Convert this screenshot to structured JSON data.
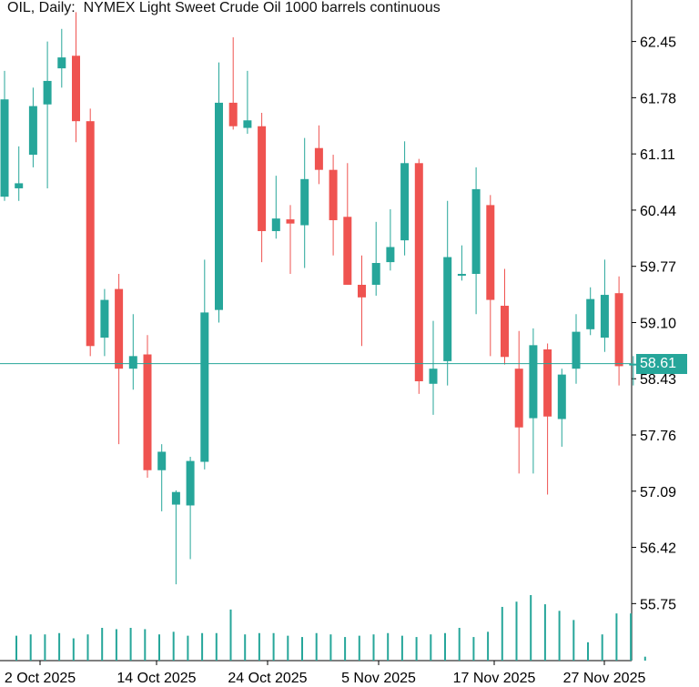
{
  "chart_data": {
    "type": "candlestick",
    "title": "OIL, Daily:  NYMEX Light Sweet Crude Oil 1000 barrels continuous",
    "ylim": [
      54.85,
      63.0
    ],
    "y_ticks": [
      "62.45",
      "61.78",
      "61.11",
      "60.44",
      "59.77",
      "59.10",
      "58.43",
      "57.76",
      "57.09",
      "56.42",
      "55.75"
    ],
    "x_tick_labels": [
      "2 Oct 2025",
      "14 Oct 2025",
      "24 Oct 2025",
      "5 Nov 2025",
      "17 Nov 2025",
      "27 Nov 2025"
    ],
    "last_price": "58.61",
    "colors": {
      "up": "#26a69a",
      "down": "#ef5350",
      "axis": "#000000",
      "volume": "#26a69a",
      "price_line": "#26a69a"
    },
    "candles": [
      {
        "o": 60.6,
        "h": 62.1,
        "l": 60.55,
        "c": 61.76
      },
      {
        "o": 60.7,
        "h": 61.2,
        "l": 60.55,
        "c": 60.76
      },
      {
        "o": 61.1,
        "h": 61.9,
        "l": 60.95,
        "c": 61.68
      },
      {
        "o": 61.7,
        "h": 62.45,
        "l": 60.7,
        "c": 61.98
      },
      {
        "o": 62.13,
        "h": 62.6,
        "l": 61.9,
        "c": 62.26
      },
      {
        "o": 62.28,
        "h": 62.8,
        "l": 61.25,
        "c": 61.5
      },
      {
        "o": 61.5,
        "h": 61.65,
        "l": 58.7,
        "c": 58.82
      },
      {
        "o": 58.92,
        "h": 59.5,
        "l": 58.7,
        "c": 59.37
      },
      {
        "o": 59.5,
        "h": 59.68,
        "l": 57.65,
        "c": 58.55
      },
      {
        "o": 58.55,
        "h": 59.2,
        "l": 58.3,
        "c": 58.7
      },
      {
        "o": 58.72,
        "h": 58.95,
        "l": 57.25,
        "c": 57.34
      },
      {
        "o": 57.34,
        "h": 57.65,
        "l": 56.85,
        "c": 57.56
      },
      {
        "o": 56.93,
        "h": 57.1,
        "l": 55.98,
        "c": 57.08
      },
      {
        "o": 56.92,
        "h": 57.5,
        "l": 56.28,
        "c": 57.45
      },
      {
        "o": 57.44,
        "h": 59.85,
        "l": 57.35,
        "c": 59.22
      },
      {
        "o": 59.25,
        "h": 62.2,
        "l": 59.1,
        "c": 61.72
      },
      {
        "o": 61.72,
        "h": 62.5,
        "l": 61.4,
        "c": 61.44
      },
      {
        "o": 61.42,
        "h": 62.1,
        "l": 61.35,
        "c": 61.51
      },
      {
        "o": 61.44,
        "h": 61.6,
        "l": 59.82,
        "c": 60.19
      },
      {
        "o": 60.19,
        "h": 60.85,
        "l": 60.1,
        "c": 60.34
      },
      {
        "o": 60.33,
        "h": 60.5,
        "l": 59.68,
        "c": 60.28
      },
      {
        "o": 60.26,
        "h": 61.3,
        "l": 59.75,
        "c": 60.81
      },
      {
        "o": 61.18,
        "h": 61.45,
        "l": 60.75,
        "c": 60.92
      },
      {
        "o": 60.92,
        "h": 61.1,
        "l": 59.9,
        "c": 60.32
      },
      {
        "o": 60.36,
        "h": 61.0,
        "l": 59.55,
        "c": 59.55
      },
      {
        "o": 59.55,
        "h": 59.9,
        "l": 58.82,
        "c": 59.4
      },
      {
        "o": 59.55,
        "h": 60.3,
        "l": 59.42,
        "c": 59.81
      },
      {
        "o": 59.82,
        "h": 60.45,
        "l": 59.72,
        "c": 60.0
      },
      {
        "o": 60.08,
        "h": 61.26,
        "l": 59.9,
        "c": 61.0
      },
      {
        "o": 61.0,
        "h": 61.05,
        "l": 58.25,
        "c": 58.4
      },
      {
        "o": 58.37,
        "h": 59.12,
        "l": 58.0,
        "c": 58.55
      },
      {
        "o": 58.64,
        "h": 60.55,
        "l": 58.35,
        "c": 59.88
      },
      {
        "o": 59.66,
        "h": 60.02,
        "l": 59.6,
        "c": 59.68
      },
      {
        "o": 59.68,
        "h": 60.95,
        "l": 59.2,
        "c": 60.69
      },
      {
        "o": 60.5,
        "h": 60.62,
        "l": 58.7,
        "c": 59.37
      },
      {
        "o": 59.3,
        "h": 59.74,
        "l": 58.6,
        "c": 58.69
      },
      {
        "o": 58.55,
        "h": 59.0,
        "l": 57.3,
        "c": 57.85
      },
      {
        "o": 57.96,
        "h": 59.03,
        "l": 57.3,
        "c": 58.83
      },
      {
        "o": 58.78,
        "h": 58.85,
        "l": 57.05,
        "c": 57.98
      },
      {
        "o": 57.95,
        "h": 58.55,
        "l": 57.62,
        "c": 58.48
      },
      {
        "o": 58.55,
        "h": 59.2,
        "l": 58.37,
        "c": 58.99
      },
      {
        "o": 59.02,
        "h": 59.52,
        "l": 58.95,
        "c": 59.38
      },
      {
        "o": 58.92,
        "h": 59.85,
        "l": 58.75,
        "c": 59.43
      },
      {
        "o": 59.45,
        "h": 59.65,
        "l": 58.35,
        "c": 58.58
      },
      {
        "o": 58.61,
        "h": 58.7,
        "l": 58.35,
        "c": 58.61
      }
    ],
    "volumes": [
      0.38,
      0.4,
      0.4,
      0.42,
      0.34,
      0.4,
      0.5,
      0.48,
      0.5,
      0.48,
      0.4,
      0.44,
      0.38,
      0.42,
      0.42,
      0.78,
      0.4,
      0.42,
      0.42,
      0.38,
      0.36,
      0.42,
      0.4,
      0.36,
      0.38,
      0.4,
      0.42,
      0.38,
      0.36,
      0.4,
      0.42,
      0.5,
      0.36,
      0.44,
      0.82,
      0.9,
      1.0,
      0.86,
      0.76,
      0.62,
      0.28,
      0.4,
      0.72,
      0.72,
      0.06
    ]
  }
}
